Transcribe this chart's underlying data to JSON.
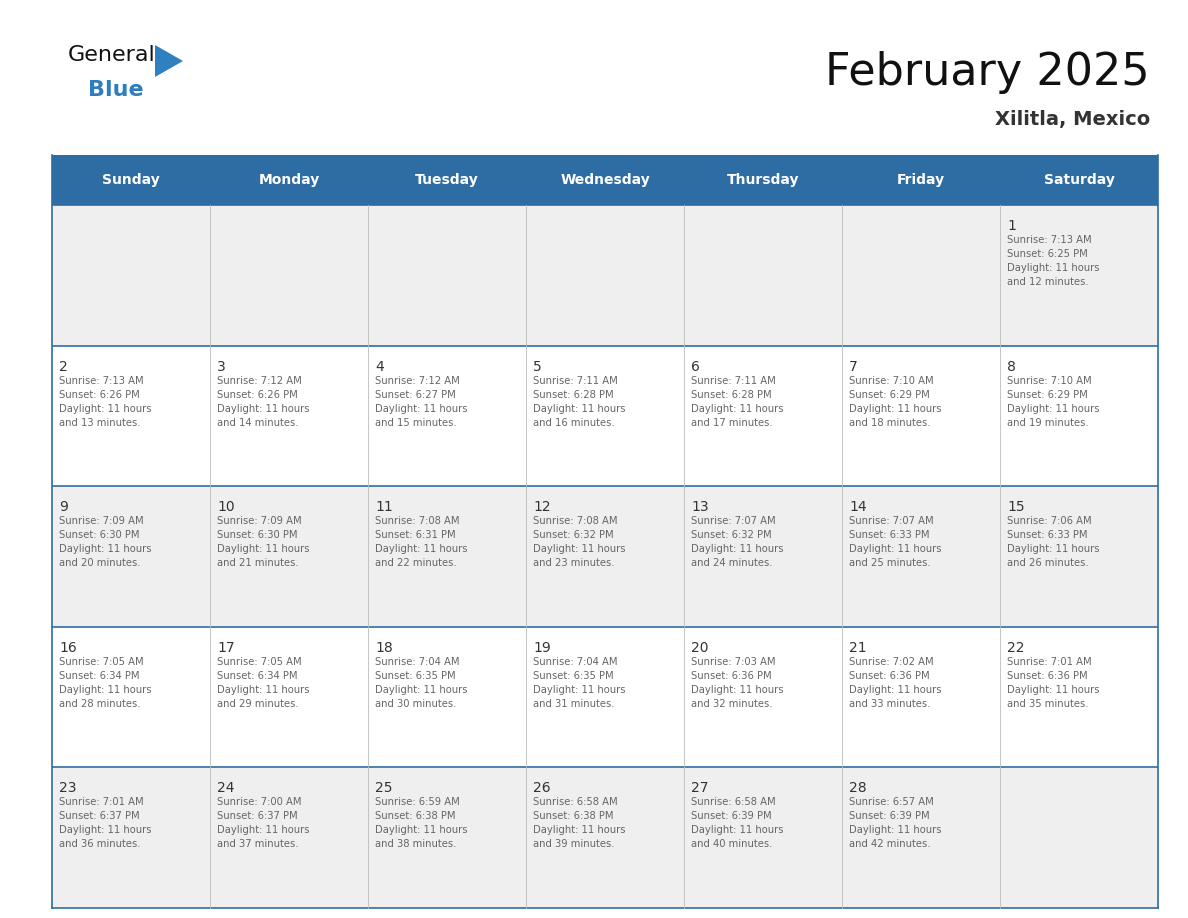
{
  "title": "February 2025",
  "subtitle": "Xilitla, Mexico",
  "header_bg_color": "#2E6DA4",
  "header_text_color": "#FFFFFF",
  "cell_bg_even": "#F0F0F0",
  "cell_bg_odd": "#FAFAFA",
  "border_color": "#2E6DA4",
  "day_text_color": "#333333",
  "info_text_color": "#666666",
  "days_of_week": [
    "Sunday",
    "Monday",
    "Tuesday",
    "Wednesday",
    "Thursday",
    "Friday",
    "Saturday"
  ],
  "calendar_data": [
    [
      {
        "day": "",
        "info": ""
      },
      {
        "day": "",
        "info": ""
      },
      {
        "day": "",
        "info": ""
      },
      {
        "day": "",
        "info": ""
      },
      {
        "day": "",
        "info": ""
      },
      {
        "day": "",
        "info": ""
      },
      {
        "day": "1",
        "info": "Sunrise: 7:13 AM\nSunset: 6:25 PM\nDaylight: 11 hours\nand 12 minutes."
      }
    ],
    [
      {
        "day": "2",
        "info": "Sunrise: 7:13 AM\nSunset: 6:26 PM\nDaylight: 11 hours\nand 13 minutes."
      },
      {
        "day": "3",
        "info": "Sunrise: 7:12 AM\nSunset: 6:26 PM\nDaylight: 11 hours\nand 14 minutes."
      },
      {
        "day": "4",
        "info": "Sunrise: 7:12 AM\nSunset: 6:27 PM\nDaylight: 11 hours\nand 15 minutes."
      },
      {
        "day": "5",
        "info": "Sunrise: 7:11 AM\nSunset: 6:28 PM\nDaylight: 11 hours\nand 16 minutes."
      },
      {
        "day": "6",
        "info": "Sunrise: 7:11 AM\nSunset: 6:28 PM\nDaylight: 11 hours\nand 17 minutes."
      },
      {
        "day": "7",
        "info": "Sunrise: 7:10 AM\nSunset: 6:29 PM\nDaylight: 11 hours\nand 18 minutes."
      },
      {
        "day": "8",
        "info": "Sunrise: 7:10 AM\nSunset: 6:29 PM\nDaylight: 11 hours\nand 19 minutes."
      }
    ],
    [
      {
        "day": "9",
        "info": "Sunrise: 7:09 AM\nSunset: 6:30 PM\nDaylight: 11 hours\nand 20 minutes."
      },
      {
        "day": "10",
        "info": "Sunrise: 7:09 AM\nSunset: 6:30 PM\nDaylight: 11 hours\nand 21 minutes."
      },
      {
        "day": "11",
        "info": "Sunrise: 7:08 AM\nSunset: 6:31 PM\nDaylight: 11 hours\nand 22 minutes."
      },
      {
        "day": "12",
        "info": "Sunrise: 7:08 AM\nSunset: 6:32 PM\nDaylight: 11 hours\nand 23 minutes."
      },
      {
        "day": "13",
        "info": "Sunrise: 7:07 AM\nSunset: 6:32 PM\nDaylight: 11 hours\nand 24 minutes."
      },
      {
        "day": "14",
        "info": "Sunrise: 7:07 AM\nSunset: 6:33 PM\nDaylight: 11 hours\nand 25 minutes."
      },
      {
        "day": "15",
        "info": "Sunrise: 7:06 AM\nSunset: 6:33 PM\nDaylight: 11 hours\nand 26 minutes."
      }
    ],
    [
      {
        "day": "16",
        "info": "Sunrise: 7:05 AM\nSunset: 6:34 PM\nDaylight: 11 hours\nand 28 minutes."
      },
      {
        "day": "17",
        "info": "Sunrise: 7:05 AM\nSunset: 6:34 PM\nDaylight: 11 hours\nand 29 minutes."
      },
      {
        "day": "18",
        "info": "Sunrise: 7:04 AM\nSunset: 6:35 PM\nDaylight: 11 hours\nand 30 minutes."
      },
      {
        "day": "19",
        "info": "Sunrise: 7:04 AM\nSunset: 6:35 PM\nDaylight: 11 hours\nand 31 minutes."
      },
      {
        "day": "20",
        "info": "Sunrise: 7:03 AM\nSunset: 6:36 PM\nDaylight: 11 hours\nand 32 minutes."
      },
      {
        "day": "21",
        "info": "Sunrise: 7:02 AM\nSunset: 6:36 PM\nDaylight: 11 hours\nand 33 minutes."
      },
      {
        "day": "22",
        "info": "Sunrise: 7:01 AM\nSunset: 6:36 PM\nDaylight: 11 hours\nand 35 minutes."
      }
    ],
    [
      {
        "day": "23",
        "info": "Sunrise: 7:01 AM\nSunset: 6:37 PM\nDaylight: 11 hours\nand 36 minutes."
      },
      {
        "day": "24",
        "info": "Sunrise: 7:00 AM\nSunset: 6:37 PM\nDaylight: 11 hours\nand 37 minutes."
      },
      {
        "day": "25",
        "info": "Sunrise: 6:59 AM\nSunset: 6:38 PM\nDaylight: 11 hours\nand 38 minutes."
      },
      {
        "day": "26",
        "info": "Sunrise: 6:58 AM\nSunset: 6:38 PM\nDaylight: 11 hours\nand 39 minutes."
      },
      {
        "day": "27",
        "info": "Sunrise: 6:58 AM\nSunset: 6:39 PM\nDaylight: 11 hours\nand 40 minutes."
      },
      {
        "day": "28",
        "info": "Sunrise: 6:57 AM\nSunset: 6:39 PM\nDaylight: 11 hours\nand 42 minutes."
      },
      {
        "day": "",
        "info": ""
      }
    ]
  ]
}
